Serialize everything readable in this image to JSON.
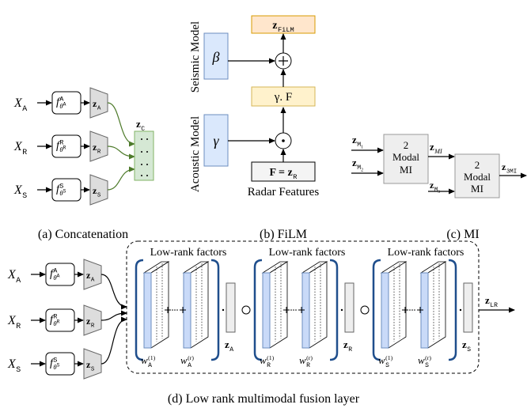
{
  "concatenation": {
    "inputs": [
      {
        "input": {
          "main": "X",
          "sub": "A"
        },
        "encoder": {
          "main": "f",
          "sup": "A",
          "sub": "θ",
          "subsup": "A"
        },
        "feature": {
          "main": "z",
          "sub": "A"
        }
      },
      {
        "input": {
          "main": "X",
          "sub": "R"
        },
        "encoder": {
          "main": "f",
          "sup": "R",
          "sub": "θ",
          "subsup": "R"
        },
        "feature": {
          "main": "z",
          "sub": "R"
        }
      },
      {
        "input": {
          "main": "X",
          "sub": "S"
        },
        "encoder": {
          "main": "f",
          "sup": "S",
          "sub": "θ",
          "subsup": "S"
        },
        "feature": {
          "main": "z",
          "sub": "S"
        }
      }
    ],
    "output": {
      "main": "z",
      "sub": "C"
    },
    "caption": "(a) Concatenation"
  },
  "film": {
    "seismic_model": "Seismic Model",
    "beta": "β",
    "acoustic_model": "Acoustic Model",
    "gamma": "γ",
    "output": {
      "main": "z",
      "sub": "FiLM"
    },
    "scaled": "γ. F",
    "feature_box": {
      "main": "F = z",
      "sub": "R"
    },
    "feature_label": "Radar Features",
    "caption": "(b) FiLM"
  },
  "mi": {
    "inputs": [
      {
        "main": "z",
        "sub": "M",
        "subsub": "1"
      },
      {
        "main": "z",
        "sub": "M",
        "subsub": "2"
      }
    ],
    "block_1": [
      "2",
      "Modal",
      "MI"
    ],
    "intermediate": {
      "main": "z",
      "sub": "MI"
    },
    "third": {
      "main": "z",
      "sub": "M",
      "subsub": "3"
    },
    "block_2": [
      "2",
      "Modal",
      "MI"
    ],
    "output": {
      "main": "z",
      "sub": "3MI"
    },
    "caption": "(c) MI"
  },
  "low_rank": {
    "inputs": [
      {
        "input": {
          "main": "X",
          "sub": "A"
        },
        "encoder": {
          "main": "f",
          "sup": "A",
          "sub": "θ",
          "subsup": "A"
        },
        "feature": {
          "main": "z",
          "sub": "A"
        }
      },
      {
        "input": {
          "main": "X",
          "sub": "R"
        },
        "encoder": {
          "main": "f",
          "sup": "R",
          "sub": "θ",
          "subsup": "R"
        },
        "feature": {
          "main": "z",
          "sub": "R"
        }
      },
      {
        "input": {
          "main": "X",
          "sub": "S"
        },
        "encoder": {
          "main": "f",
          "sup": "S",
          "sub": "θ",
          "subsup": "S"
        },
        "feature": {
          "main": "z",
          "sub": "S"
        }
      }
    ],
    "factors": [
      {
        "title": "Low-rank factors",
        "first": {
          "main": "w",
          "sub": "A",
          "sup": "(1)"
        },
        "last": {
          "main": "w",
          "sub": "A",
          "sup": "(r)"
        },
        "feature": {
          "main": "z",
          "sub": "A"
        }
      },
      {
        "title": "Low-rank factors",
        "first": {
          "main": "w",
          "sub": "R",
          "sup": "(1)"
        },
        "last": {
          "main": "w",
          "sub": "R",
          "sup": "(r)"
        },
        "feature": {
          "main": "z",
          "sub": "R"
        }
      },
      {
        "title": "Low-rank factors",
        "first": {
          "main": "w",
          "sub": "S",
          "sup": "(1)"
        },
        "last": {
          "main": "w",
          "sub": "S",
          "sup": "(r)"
        },
        "feature": {
          "main": "z",
          "sub": "S"
        }
      }
    ],
    "output": {
      "main": "z",
      "sub": "LR"
    },
    "caption": "(d) Low rank multimodal fusion layer"
  }
}
